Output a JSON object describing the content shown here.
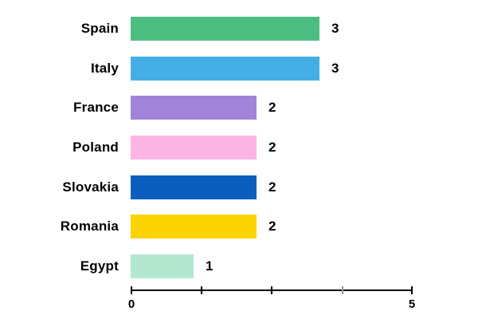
{
  "chart_data": {
    "type": "bar",
    "orientation": "horizontal",
    "title": "",
    "xlabel": "",
    "ylabel": "",
    "categories": [
      "Spain",
      "Italy",
      "France",
      "Poland",
      "Slovakia",
      "Romania",
      "Egypt"
    ],
    "values": [
      3,
      3,
      2,
      2,
      2,
      2,
      1
    ],
    "value_labels": [
      "3",
      "3",
      "2",
      "2",
      "2",
      "2",
      "1"
    ],
    "bar_colors": [
      "#4dbe82",
      "#45afe5",
      "#a183d9",
      "#fcb4e5",
      "#0b5ebd",
      "#fcd303",
      "#b4e7d0"
    ],
    "xlim": [
      0,
      5
    ],
    "x_tick_positions": [
      0,
      1.25,
      2.5,
      3.75,
      5
    ],
    "x_tick_labels_visible": [
      "0",
      "5"
    ],
    "grid": false,
    "legend": false,
    "axis_color": "#000000",
    "minor_tick_color": "#999999",
    "background_color": "#ffffff"
  }
}
